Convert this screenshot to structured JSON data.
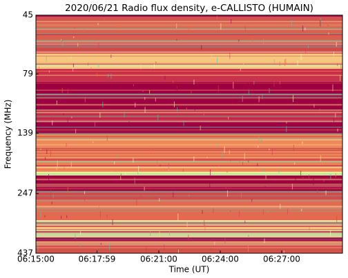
{
  "chart_data": {
    "type": "spectrogram",
    "title": "2020/06/21  Radio flux density, e-CALLISTO (HUMAIN)",
    "xlabel": "Time (UT)",
    "ylabel": "Frequency (MHz)",
    "xlim": [
      0,
      898
    ],
    "xticks": [
      {
        "value": 0,
        "label": "06:15:00"
      },
      {
        "value": 179,
        "label": "06:17:59"
      },
      {
        "value": 360,
        "label": "06:21:00"
      },
      {
        "value": 540,
        "label": "06:24:00"
      },
      {
        "value": 720,
        "label": "06:27:00"
      }
    ],
    "ylim": [
      45,
      437
    ],
    "ylog": true,
    "yinverted": true,
    "yticks": [
      45,
      79,
      139,
      247,
      437
    ],
    "bands": [
      {
        "from": 45,
        "to": 47,
        "color": "#c83a4b"
      },
      {
        "from": 47,
        "to": 58,
        "color": "#d9604f"
      },
      {
        "from": 58,
        "to": 60,
        "color": "#b01e47"
      },
      {
        "from": 60,
        "to": 65,
        "color": "#d04a4c"
      },
      {
        "from": 65,
        "to": 75,
        "color": "#f7c77f"
      },
      {
        "from": 75,
        "to": 85,
        "color": "#c8324b"
      },
      {
        "from": 85,
        "to": 111,
        "color": "#9e0142"
      },
      {
        "from": 111,
        "to": 123,
        "color": "#c53249"
      },
      {
        "from": 123,
        "to": 140,
        "color": "#9e0142"
      },
      {
        "from": 140,
        "to": 201,
        "color": "#ee8a5a"
      },
      {
        "from": 201,
        "to": 208,
        "color": "#e6f598"
      },
      {
        "from": 208,
        "to": 242,
        "color": "#9e0142"
      },
      {
        "from": 242,
        "to": 262,
        "color": "#d24b4c"
      },
      {
        "from": 262,
        "to": 319,
        "color": "#e36a50"
      },
      {
        "from": 319,
        "to": 376,
        "color": "#f5d98e"
      },
      {
        "from": 376,
        "to": 388,
        "color": "#9e0142"
      },
      {
        "from": 388,
        "to": 437,
        "color": "#d4504c"
      }
    ]
  }
}
